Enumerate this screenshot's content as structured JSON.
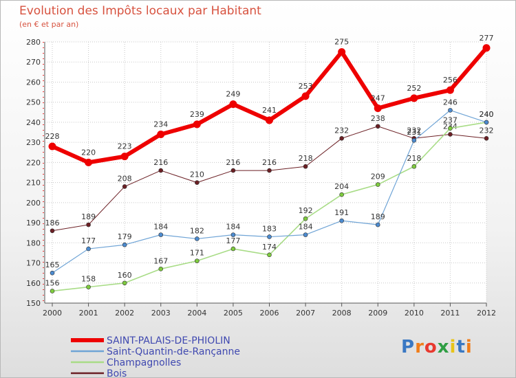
{
  "title": "Evolution des Impôts locaux par Habitant",
  "subtitle": "(en € et par an)",
  "logo": {
    "text": "Proxiti",
    "colors": [
      "#3a78c3",
      "#f07d1a",
      "#e8392f",
      "#2f9e44",
      "#e8c41a",
      "#3a78c3",
      "#f07d1a"
    ]
  },
  "chart_data": {
    "type": "line",
    "title": "Evolution des Impôts locaux par Habitant",
    "subtitle": "(en € et par an)",
    "xlabel": "",
    "ylabel": "",
    "ylim": [
      150,
      280
    ],
    "yticks": [
      150,
      160,
      170,
      180,
      190,
      200,
      210,
      220,
      230,
      240,
      250,
      260,
      270,
      280
    ],
    "categories": [
      "2000",
      "2001",
      "2002",
      "2003",
      "2004",
      "2005",
      "2006",
      "2007",
      "2008",
      "2009",
      "2010",
      "2011",
      "2012"
    ],
    "grid": true,
    "legend_position": "bottom-left",
    "series": [
      {
        "name": "Bois",
        "color": "#6b1f24",
        "markerColor": "#6b1f24",
        "width": 1,
        "marker": 3,
        "values": [
          186,
          189,
          208,
          216,
          210,
          216,
          216,
          218,
          232,
          238,
          232,
          234,
          232
        ]
      },
      {
        "name": "Champagnolles",
        "color": "#a8dc86",
        "markerColor": "#7ecb3e",
        "width": 1.6,
        "marker": 3,
        "values": [
          156,
          158,
          160,
          167,
          171,
          177,
          174,
          192,
          204,
          209,
          218,
          237,
          240
        ]
      },
      {
        "name": "Saint-Quantin-de-Rançanne",
        "color": "#6fa4d6",
        "markerColor": "#4c8bd0",
        "width": 1.2,
        "marker": 3,
        "values": [
          165,
          177,
          179,
          184,
          182,
          184,
          183,
          184,
          191,
          189,
          231,
          246,
          240
        ]
      },
      {
        "name": "SAINT-PALAIS-DE-PHIOLIN",
        "color": "#ee0000",
        "markerColor": "#ee0000",
        "width": 6,
        "marker": 5.5,
        "values": [
          228,
          220,
          223,
          234,
          239,
          249,
          241,
          253,
          275,
          247,
          252,
          256,
          277
        ]
      }
    ],
    "legend": [
      "SAINT-PALAIS-DE-PHIOLIN",
      "Saint-Quantin-de-Rançanne",
      "Champagnolles",
      "Bois"
    ]
  }
}
